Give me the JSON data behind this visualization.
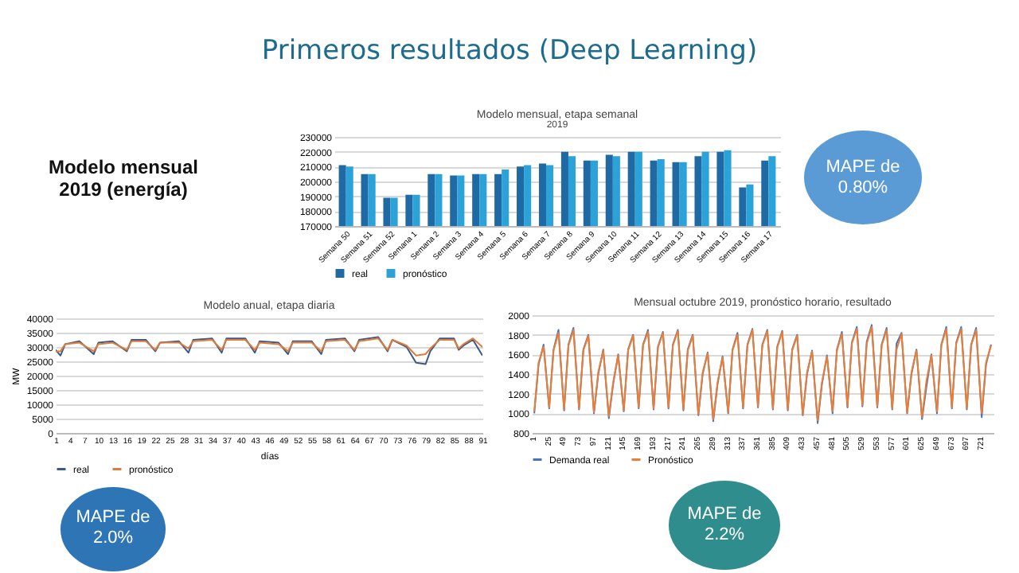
{
  "chart_data": [
    {
      "type": "other",
      "title": "Primeros resultados (Deep Learning)",
      "annotations": [
        "Modelo mensual 2019 (energía)"
      ]
    },
    {
      "type": "bar",
      "title": "Modelo mensual, etapa semanal",
      "subtitle": "2019",
      "categories": [
        "Semana 50",
        "Semana 51",
        "Semana 52",
        "Semana 1",
        "Semana 2",
        "Semana 3",
        "Semana 4",
        "Semana 5",
        "Semana 6",
        "Semana 7",
        "Semana 8",
        "Semana 9",
        "Semana 10",
        "Semana 11",
        "Semana 12",
        "Semana 13",
        "Semana 14",
        "Semana 15",
        "Semana 16",
        "Semana 17"
      ],
      "series": [
        {
          "name": "real",
          "color": "#1f6aa5",
          "values": [
            211000,
            205000,
            189000,
            191000,
            205000,
            204000,
            205000,
            205000,
            210000,
            212000,
            220000,
            214000,
            218000,
            220000,
            214000,
            213000,
            217000,
            220000,
            196000,
            214000
          ]
        },
        {
          "name": "pronóstico",
          "color": "#2ba3d9",
          "values": [
            210000,
            205000,
            189000,
            191000,
            205000,
            204000,
            205000,
            208000,
            211000,
            211000,
            217000,
            214000,
            217000,
            220000,
            215000,
            213000,
            220000,
            221000,
            198000,
            217000
          ]
        }
      ],
      "ylim": [
        170000,
        230000
      ],
      "yticks": [
        170000,
        180000,
        190000,
        200000,
        210000,
        220000,
        230000
      ],
      "grid": "y",
      "legend": "bottom",
      "annotations": [
        "MAPE de 0.80%"
      ]
    },
    {
      "type": "line",
      "title": "Modelo anual, etapa diaria",
      "xlabel": "días",
      "ylabel": "MW",
      "series": [
        {
          "name": "real",
          "color": "#3a5a8c",
          "x": [
            1,
            2,
            3,
            6,
            9,
            10,
            13,
            16,
            17,
            20,
            22,
            23,
            27,
            29,
            30,
            34,
            36,
            37,
            41,
            43,
            44,
            48,
            50,
            51,
            55,
            57,
            58,
            62,
            64,
            65,
            69,
            71,
            72,
            75,
            77,
            79,
            80,
            82,
            85,
            86,
            87,
            89,
            91
          ],
          "values": [
            29000,
            27000,
            31000,
            32000,
            27500,
            31500,
            32000,
            28500,
            32500,
            32500,
            28500,
            31500,
            32000,
            28000,
            32500,
            33000,
            28000,
            33000,
            33000,
            28000,
            32000,
            31500,
            27500,
            32000,
            32000,
            27500,
            32500,
            33000,
            28500,
            32500,
            33500,
            28500,
            32500,
            30000,
            24500,
            24000,
            28500,
            33000,
            33000,
            29000,
            30500,
            32500,
            27000
          ]
        },
        {
          "name": "pronóstico",
          "color": "#e07b39",
          "x": [
            1,
            2,
            3,
            6,
            9,
            10,
            13,
            16,
            17,
            20,
            22,
            23,
            27,
            29,
            30,
            34,
            36,
            37,
            41,
            43,
            44,
            48,
            50,
            51,
            55,
            57,
            58,
            62,
            64,
            65,
            69,
            71,
            72,
            75,
            77,
            79,
            80,
            82,
            85,
            86,
            87,
            89,
            91
          ],
          "values": [
            28500,
            28500,
            31000,
            31500,
            28500,
            31000,
            31500,
            29000,
            32000,
            32000,
            29000,
            31500,
            31500,
            29500,
            32000,
            32500,
            29000,
            32500,
            32500,
            29000,
            31500,
            31000,
            28500,
            31500,
            31500,
            28500,
            32000,
            32500,
            29000,
            32000,
            33000,
            29000,
            32500,
            30500,
            27000,
            27500,
            29500,
            32500,
            32500,
            29500,
            31000,
            33000,
            30000
          ]
        }
      ],
      "xlim": [
        1,
        91
      ],
      "xticks": [
        1,
        4,
        7,
        10,
        13,
        16,
        19,
        22,
        25,
        28,
        31,
        34,
        37,
        40,
        43,
        46,
        49,
        52,
        55,
        58,
        61,
        64,
        67,
        70,
        73,
        76,
        79,
        82,
        85,
        88,
        91
      ],
      "ylim": [
        0,
        40000
      ],
      "yticks": [
        0,
        5000,
        10000,
        15000,
        20000,
        25000,
        30000,
        35000,
        40000
      ],
      "grid": "y",
      "legend": "bottom",
      "annotations": [
        "MAPE de 2.0%"
      ]
    },
    {
      "type": "line",
      "title": "Mensual octubre 2019, pronóstico horario, resultado",
      "series": [
        {
          "name": "Demanda real",
          "color": "#4472c4",
          "x": [
            5,
            12,
            20,
            29,
            36,
            44,
            53,
            60,
            68,
            77,
            84,
            92,
            101,
            108,
            116,
            125,
            132,
            140,
            149,
            156,
            164,
            173,
            180,
            188,
            197,
            204,
            212,
            221,
            228,
            236,
            245,
            252,
            260,
            269,
            276,
            284,
            293,
            300,
            308,
            317,
            324,
            332,
            341,
            348,
            356,
            365,
            372,
            380,
            389,
            396,
            404,
            413,
            420,
            428,
            437,
            444,
            452,
            461,
            468,
            476,
            485,
            492,
            500,
            509,
            516,
            524,
            533,
            540,
            548,
            557,
            564,
            572,
            581,
            588,
            596,
            605,
            612,
            620,
            629,
            636,
            644,
            653,
            660,
            668,
            677,
            684,
            692,
            701,
            708,
            716,
            725,
            732,
            740
          ],
          "values": [
            1000,
            1500,
            1700,
            1050,
            1650,
            1850,
            1030,
            1700,
            1870,
            1040,
            1650,
            1800,
            1000,
            1400,
            1650,
            950,
            1300,
            1600,
            1020,
            1650,
            1800,
            1050,
            1700,
            1850,
            1040,
            1680,
            1830,
            1050,
            1700,
            1850,
            1030,
            1650,
            1800,
            980,
            1400,
            1620,
            920,
            1300,
            1580,
            1000,
            1650,
            1820,
            1050,
            1700,
            1860,
            1060,
            1700,
            1850,
            1040,
            1680,
            1840,
            1030,
            1650,
            1800,
            980,
            1400,
            1640,
            900,
            1300,
            1590,
            1000,
            1650,
            1830,
            1060,
            1720,
            1880,
            1070,
            1730,
            1900,
            1060,
            1700,
            1870,
            1040,
            1710,
            1820,
            1000,
            1400,
            1650,
            940,
            1270,
            1600,
            1000,
            1700,
            1880,
            1050,
            1720,
            1880,
            1040,
            1700,
            1870,
            960,
            1500,
            1700
          ]
        },
        {
          "name": "Pronóstico",
          "color": "#ed7d31",
          "x": [
            5,
            12,
            20,
            29,
            36,
            44,
            53,
            60,
            68,
            77,
            84,
            92,
            101,
            108,
            116,
            125,
            132,
            140,
            149,
            156,
            164,
            173,
            180,
            188,
            197,
            204,
            212,
            221,
            228,
            236,
            245,
            252,
            260,
            269,
            276,
            284,
            293,
            300,
            308,
            317,
            324,
            332,
            341,
            348,
            356,
            365,
            372,
            380,
            389,
            396,
            404,
            413,
            420,
            428,
            437,
            444,
            452,
            461,
            468,
            476,
            485,
            492,
            500,
            509,
            516,
            524,
            533,
            540,
            548,
            557,
            564,
            572,
            581,
            588,
            596,
            605,
            612,
            620,
            629,
            636,
            644,
            653,
            660,
            668,
            677,
            684,
            692,
            701,
            708,
            716,
            725,
            732,
            740
          ],
          "values": [
            1020,
            1520,
            1680,
            1060,
            1640,
            1820,
            1040,
            1690,
            1850,
            1050,
            1640,
            1790,
            1010,
            1420,
            1640,
            970,
            1320,
            1590,
            1030,
            1640,
            1790,
            1060,
            1690,
            1830,
            1050,
            1670,
            1820,
            1060,
            1690,
            1840,
            1040,
            1640,
            1790,
            990,
            1420,
            1610,
            940,
            1320,
            1570,
            1010,
            1640,
            1800,
            1060,
            1690,
            1850,
            1070,
            1690,
            1840,
            1050,
            1670,
            1830,
            1040,
            1640,
            1790,
            990,
            1420,
            1630,
            930,
            1320,
            1580,
            1020,
            1640,
            1810,
            1070,
            1710,
            1860,
            1080,
            1710,
            1880,
            1070,
            1690,
            1850,
            1050,
            1650,
            1810,
            1010,
            1420,
            1640,
            960,
            1330,
            1590,
            1020,
            1690,
            1860,
            1060,
            1710,
            1860,
            1050,
            1690,
            1850,
            1000,
            1520,
            1690
          ]
        }
      ],
      "xlim": [
        1,
        744
      ],
      "xticks": [
        1,
        25,
        49,
        73,
        97,
        121,
        145,
        169,
        193,
        217,
        241,
        265,
        289,
        313,
        337,
        361,
        385,
        409,
        433,
        457,
        481,
        505,
        529,
        553,
        577,
        601,
        625,
        649,
        673,
        697,
        721
      ],
      "ylim": [
        800,
        2000
      ],
      "yticks": [
        800,
        1000,
        1200,
        1400,
        1600,
        1800,
        2000
      ],
      "grid": "y",
      "legend": "bottom",
      "annotations": [
        "MAPE de 2.2%"
      ]
    }
  ]
}
